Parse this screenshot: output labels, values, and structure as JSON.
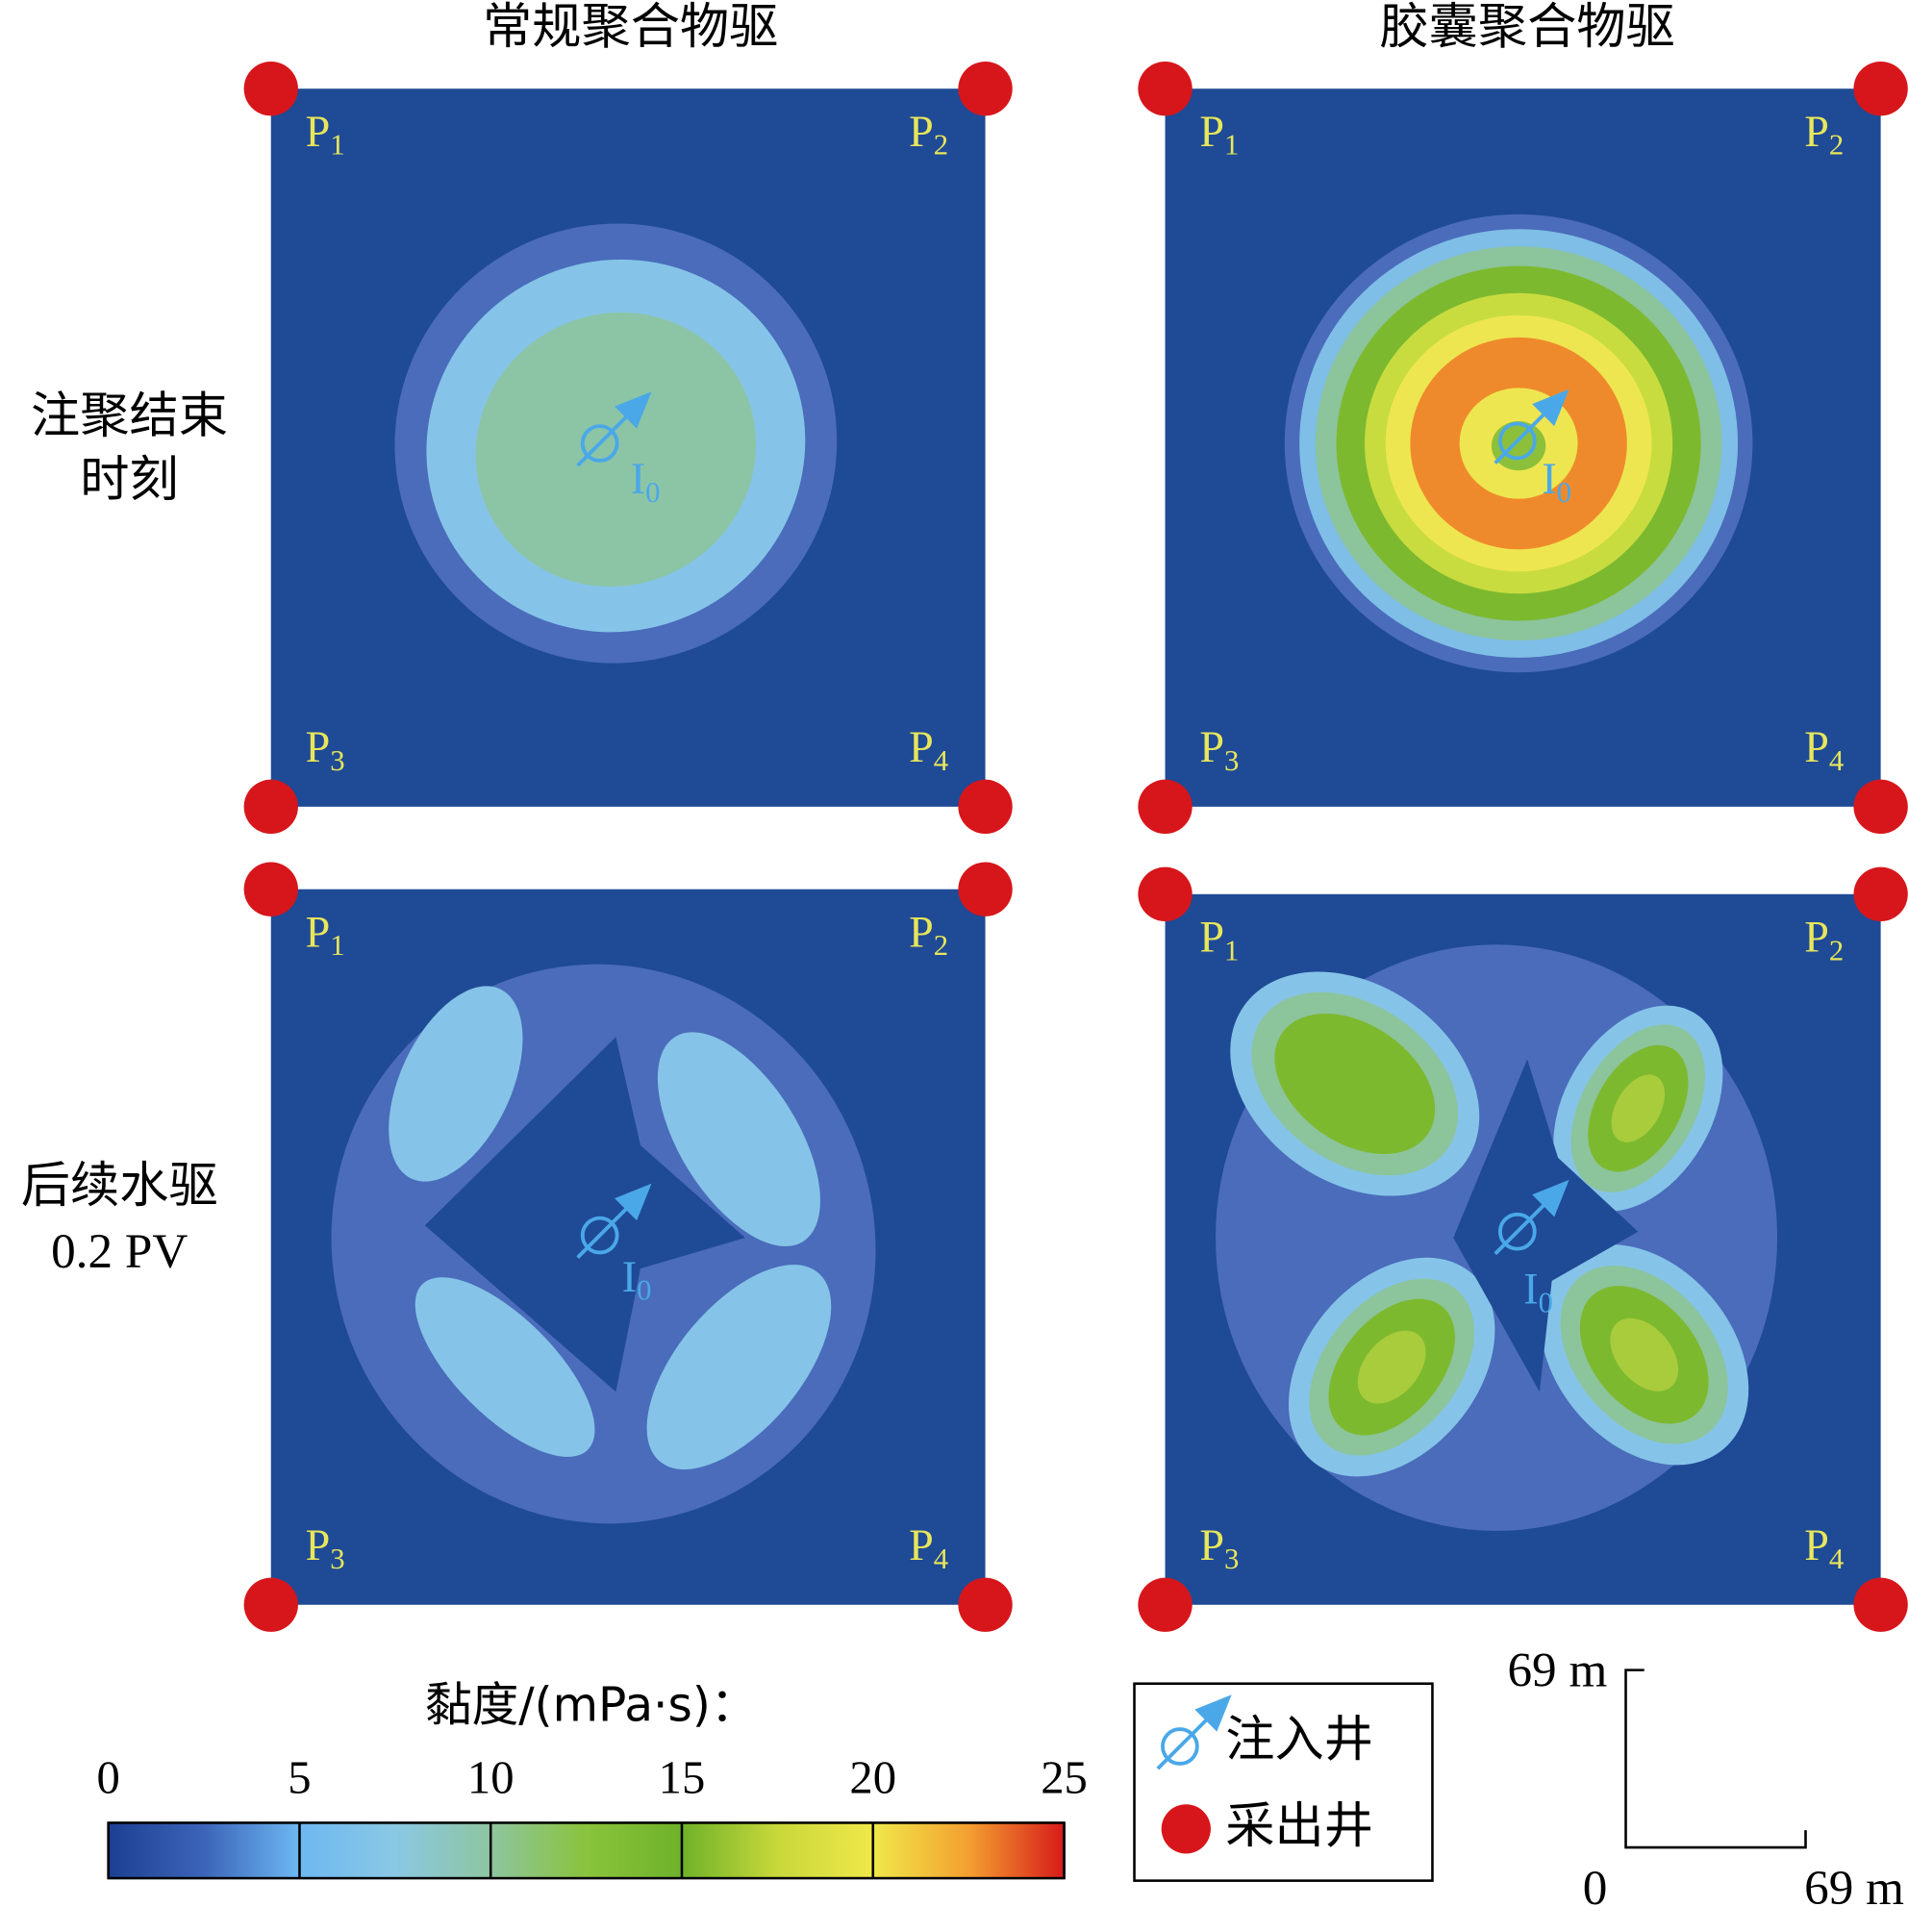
{
  "chart_data": {
    "type": "contour-panels",
    "column_titles": [
      "常规聚合物驱",
      "胶囊聚合物驱"
    ],
    "row_labels": [
      [
        "注聚结束",
        "时刻"
      ],
      [
        "后续水驱",
        "0.2 PV"
      ]
    ],
    "producers": [
      {
        "base": "P",
        "sub": "1"
      },
      {
        "base": "P",
        "sub": "2"
      },
      {
        "base": "P",
        "sub": "3"
      },
      {
        "base": "P",
        "sub": "4"
      }
    ],
    "injector": {
      "base": "I",
      "sub": "0"
    },
    "colorbar": {
      "label": "黏度/(mPa·s)：",
      "lim": [
        0,
        25
      ],
      "ticks": [
        0,
        5,
        10,
        15,
        20,
        25
      ],
      "colors": [
        "#1c3f93",
        "#3c64b8",
        "#6db8f2",
        "#8ac8e4",
        "#8ec5a0",
        "#8ac33c",
        "#6fb22a",
        "#c8d83a",
        "#f0e84a",
        "#f3a030",
        "#d81a1a"
      ]
    },
    "legend": [
      "注入井",
      "采出井"
    ],
    "scale_bar": {
      "y_label": "69 m",
      "origin_label": "0",
      "x_label": "69 m"
    }
  }
}
